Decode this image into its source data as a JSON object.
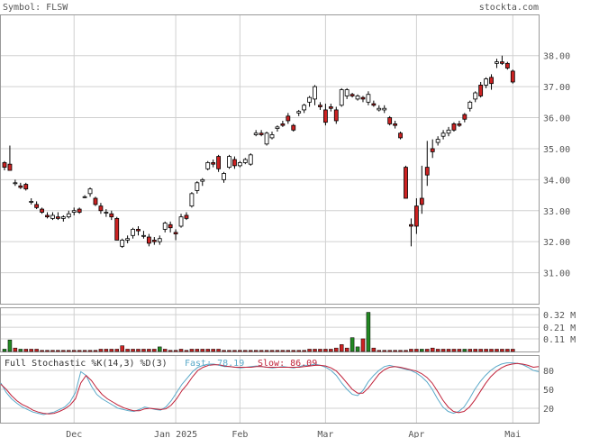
{
  "header": {
    "symbol_label": "Symbol: FLSW",
    "site": "stockta.com"
  },
  "stoch": {
    "title": "Full Stochastic %K(14,3) %D(3)",
    "fast_label": "Fast: 78.19",
    "slow_label": "Slow: 86.09"
  },
  "colors": {
    "up_candle": "#ffffff",
    "down_candle": "#cc2222",
    "volume_up": "#228822",
    "volume_down": "#cc2222",
    "fast_line": "#5aa9c9",
    "slow_line": "#c0223a",
    "grid": "#d0d0d0"
  },
  "chart_data": [
    {
      "type": "candlestick",
      "title": "FLSW",
      "price_ticks": [
        "38.00",
        "37.00",
        "36.00",
        "35.00",
        "34.00",
        "33.00",
        "32.00",
        "31.00"
      ],
      "ylim": [
        30.0,
        39.3
      ],
      "x_tick_labels": [
        "Dec",
        "Jan 2025",
        "Feb",
        "Mar",
        "Apr",
        "Mai"
      ],
      "grid": true,
      "ohlc": [
        [
          34.55,
          34.6,
          34.3,
          34.4
        ],
        [
          34.5,
          35.1,
          34.3,
          34.3
        ],
        [
          33.9,
          34.0,
          33.8,
          33.9
        ],
        [
          33.8,
          33.9,
          33.7,
          33.75
        ],
        [
          33.85,
          33.9,
          33.65,
          33.7
        ],
        [
          33.3,
          33.4,
          33.2,
          33.3
        ],
        [
          33.2,
          33.3,
          33.05,
          33.1
        ],
        [
          33.05,
          33.1,
          32.9,
          32.95
        ],
        [
          32.85,
          32.95,
          32.75,
          32.8
        ],
        [
          32.75,
          32.95,
          32.7,
          32.85
        ],
        [
          32.8,
          32.95,
          32.7,
          32.75
        ],
        [
          32.75,
          32.85,
          32.65,
          32.8
        ],
        [
          32.8,
          33.0,
          32.75,
          32.9
        ],
        [
          32.95,
          33.1,
          32.85,
          33.0
        ],
        [
          33.05,
          33.1,
          32.9,
          32.95
        ],
        [
          33.45,
          33.5,
          33.4,
          33.45
        ],
        [
          33.55,
          33.75,
          33.45,
          33.7
        ],
        [
          33.4,
          33.45,
          33.15,
          33.2
        ],
        [
          33.15,
          33.25,
          32.9,
          33.0
        ],
        [
          32.95,
          33.05,
          32.8,
          32.95
        ],
        [
          32.9,
          33.0,
          32.7,
          32.8
        ],
        [
          32.75,
          32.8,
          32.05,
          32.05
        ],
        [
          31.85,
          32.1,
          31.8,
          32.05
        ],
        [
          32.05,
          32.2,
          31.95,
          32.1
        ],
        [
          32.2,
          32.45,
          32.1,
          32.4
        ],
        [
          32.4,
          32.5,
          32.2,
          32.35
        ],
        [
          32.2,
          32.35,
          32.1,
          32.2
        ],
        [
          32.15,
          32.25,
          31.85,
          31.95
        ],
        [
          32.05,
          32.15,
          31.9,
          32.0
        ],
        [
          32.0,
          32.2,
          31.9,
          32.1
        ],
        [
          32.4,
          32.65,
          32.3,
          32.6
        ],
        [
          32.55,
          32.65,
          32.3,
          32.45
        ],
        [
          32.3,
          32.4,
          32.05,
          32.25
        ],
        [
          32.5,
          32.9,
          32.45,
          32.8
        ],
        [
          32.85,
          32.95,
          32.7,
          32.75
        ],
        [
          33.15,
          33.6,
          33.1,
          33.55
        ],
        [
          33.65,
          33.95,
          33.55,
          33.9
        ],
        [
          33.95,
          34.05,
          33.8,
          34.0
        ],
        [
          34.35,
          34.6,
          34.3,
          34.55
        ],
        [
          34.55,
          34.65,
          34.4,
          34.5
        ],
        [
          34.75,
          34.8,
          34.25,
          34.35
        ],
        [
          34.0,
          34.25,
          33.9,
          34.2
        ],
        [
          34.4,
          34.8,
          34.35,
          34.75
        ],
        [
          34.65,
          34.75,
          34.35,
          34.45
        ],
        [
          34.45,
          34.6,
          34.4,
          34.55
        ],
        [
          34.55,
          34.7,
          34.5,
          34.65
        ],
        [
          34.5,
          34.85,
          34.45,
          34.8
        ],
        [
          35.45,
          35.6,
          35.4,
          35.5
        ],
        [
          35.5,
          35.6,
          35.4,
          35.45
        ],
        [
          35.15,
          35.55,
          35.1,
          35.5
        ],
        [
          35.35,
          35.55,
          35.3,
          35.45
        ],
        [
          35.65,
          35.75,
          35.55,
          35.7
        ],
        [
          35.8,
          35.9,
          35.7,
          35.75
        ],
        [
          36.05,
          36.15,
          35.8,
          35.9
        ],
        [
          35.75,
          35.8,
          35.55,
          35.6
        ],
        [
          36.15,
          36.25,
          36.05,
          36.2
        ],
        [
          36.25,
          36.45,
          36.15,
          36.4
        ],
        [
          36.5,
          36.7,
          36.35,
          36.65
        ],
        [
          36.6,
          37.05,
          36.4,
          37.0
        ],
        [
          36.4,
          36.5,
          36.25,
          36.35
        ],
        [
          36.25,
          36.45,
          35.75,
          35.85
        ],
        [
          36.35,
          36.45,
          36.2,
          36.3
        ],
        [
          36.25,
          36.35,
          35.8,
          35.9
        ],
        [
          36.4,
          36.95,
          36.35,
          36.9
        ],
        [
          36.7,
          36.95,
          36.6,
          36.9
        ],
        [
          36.75,
          36.8,
          36.65,
          36.7
        ],
        [
          36.6,
          36.75,
          36.55,
          36.7
        ],
        [
          36.65,
          36.7,
          36.5,
          36.6
        ],
        [
          36.5,
          36.85,
          36.4,
          36.75
        ],
        [
          36.45,
          36.55,
          36.35,
          36.4
        ],
        [
          36.25,
          36.4,
          36.2,
          36.3
        ],
        [
          36.25,
          36.4,
          36.15,
          36.3
        ],
        [
          36.0,
          36.05,
          35.75,
          35.8
        ],
        [
          35.8,
          35.9,
          35.65,
          35.75
        ],
        [
          35.5,
          35.55,
          35.3,
          35.35
        ],
        [
          34.4,
          34.45,
          33.4,
          33.4
        ],
        [
          32.55,
          32.75,
          31.85,
          32.5
        ],
        [
          33.15,
          33.4,
          32.25,
          32.5
        ],
        [
          33.4,
          34.45,
          32.9,
          33.2
        ],
        [
          34.4,
          35.25,
          33.8,
          34.15
        ],
        [
          35.0,
          35.3,
          34.7,
          34.9
        ],
        [
          35.2,
          35.4,
          35.1,
          35.3
        ],
        [
          35.4,
          35.6,
          35.3,
          35.5
        ],
        [
          35.5,
          35.7,
          35.4,
          35.6
        ],
        [
          35.8,
          35.85,
          35.55,
          35.6
        ],
        [
          35.8,
          35.9,
          35.7,
          35.75
        ],
        [
          36.1,
          36.15,
          35.85,
          35.95
        ],
        [
          36.3,
          36.55,
          36.2,
          36.5
        ],
        [
          36.6,
          36.85,
          36.5,
          36.8
        ],
        [
          37.05,
          37.15,
          36.65,
          36.7
        ],
        [
          37.05,
          37.3,
          36.95,
          37.25
        ],
        [
          37.3,
          37.4,
          36.9,
          37.1
        ],
        [
          37.75,
          37.9,
          37.6,
          37.8
        ],
        [
          37.8,
          38.0,
          37.7,
          37.75
        ],
        [
          37.75,
          37.8,
          37.55,
          37.6
        ],
        [
          37.5,
          37.55,
          37.1,
          37.15
        ]
      ],
      "volume_ticks": [
        "0.32 M",
        "0.21 M",
        "0.11 M"
      ],
      "volume_max": 0.36,
      "volume": [
        0.02,
        0.1,
        0.03,
        0.02,
        0.02,
        0.02,
        0.02,
        0.01,
        0.01,
        0.01,
        0.01,
        0.01,
        0.01,
        0.01,
        0.01,
        0.01,
        0.01,
        0.01,
        0.02,
        0.02,
        0.02,
        0.02,
        0.05,
        0.02,
        0.02,
        0.02,
        0.02,
        0.02,
        0.02,
        0.04,
        0.02,
        0.01,
        0.01,
        0.02,
        0.01,
        0.02,
        0.02,
        0.02,
        0.02,
        0.02,
        0.02,
        0.01,
        0.01,
        0.01,
        0.01,
        0.01,
        0.01,
        0.01,
        0.01,
        0.01,
        0.01,
        0.01,
        0.01,
        0.01,
        0.01,
        0.01,
        0.01,
        0.02,
        0.02,
        0.02,
        0.02,
        0.02,
        0.03,
        0.06,
        0.03,
        0.12,
        0.04,
        0.11,
        0.34,
        0.03,
        0.01,
        0.01,
        0.01,
        0.01,
        0.01,
        0.01,
        0.02,
        0.02,
        0.02,
        0.02,
        0.03,
        0.02,
        0.02,
        0.02,
        0.02,
        0.02,
        0.02,
        0.02,
        0.02,
        0.02,
        0.02,
        0.02,
        0.02,
        0.02,
        0.02,
        0.02
      ],
      "volume_up": [
        1,
        1,
        0,
        1,
        0,
        0,
        0,
        0,
        0,
        0,
        0,
        0,
        0,
        0,
        0,
        0,
        0,
        0,
        0,
        0,
        0,
        0,
        0,
        0,
        0,
        0,
        0,
        0,
        0,
        1,
        0,
        0,
        0,
        0,
        0,
        0,
        0,
        0,
        0,
        0,
        0,
        0,
        0,
        0,
        0,
        0,
        0,
        0,
        0,
        0,
        0,
        0,
        0,
        0,
        0,
        0,
        0,
        0,
        0,
        0,
        0,
        0,
        0,
        0,
        0,
        1,
        1,
        0,
        1,
        0,
        0,
        0,
        0,
        0,
        0,
        0,
        0,
        0,
        1,
        0,
        0,
        0,
        0,
        0,
        0,
        0,
        1,
        0,
        0,
        0,
        0,
        0,
        0,
        0,
        0,
        0
      ],
      "stoch_ticks": [
        "80",
        "50",
        "20"
      ],
      "stoch_fast": [
        60,
        45,
        35,
        28,
        22,
        18,
        14,
        12,
        10,
        12,
        14,
        18,
        22,
        30,
        45,
        78,
        72,
        55,
        42,
        35,
        30,
        25,
        20,
        18,
        16,
        15,
        18,
        22,
        20,
        18,
        17,
        22,
        32,
        45,
        58,
        68,
        78,
        85,
        88,
        90,
        90,
        88,
        86,
        86,
        85,
        84,
        85,
        86,
        87,
        86,
        85,
        84,
        85,
        86,
        85,
        84,
        86,
        88,
        88,
        90,
        88,
        85,
        80,
        72,
        60,
        50,
        42,
        40,
        48,
        62,
        72,
        80,
        86,
        88,
        86,
        84,
        82,
        80,
        76,
        70,
        62,
        50,
        35,
        22,
        15,
        12,
        15,
        22,
        35,
        50,
        62,
        72,
        80,
        86,
        90,
        92,
        92,
        91,
        89,
        85,
        80,
        78
      ],
      "stoch_slow": [
        58,
        50,
        40,
        32,
        26,
        22,
        17,
        14,
        12,
        11,
        12,
        15,
        19,
        25,
        35,
        60,
        72,
        64,
        52,
        42,
        35,
        30,
        25,
        21,
        18,
        16,
        16,
        19,
        20,
        19,
        18,
        19,
        25,
        35,
        48,
        58,
        70,
        80,
        85,
        88,
        89,
        89,
        87,
        86,
        85,
        85,
        85,
        85,
        86,
        86,
        85,
        85,
        85,
        85,
        85,
        85,
        85,
        86,
        87,
        88,
        88,
        87,
        84,
        79,
        70,
        60,
        50,
        44,
        44,
        52,
        63,
        74,
        81,
        85,
        86,
        85,
        83,
        81,
        79,
        75,
        69,
        60,
        47,
        33,
        22,
        15,
        13,
        15,
        22,
        33,
        46,
        59,
        70,
        78,
        84,
        88,
        90,
        91,
        90,
        88,
        85,
        86
      ]
    }
  ]
}
